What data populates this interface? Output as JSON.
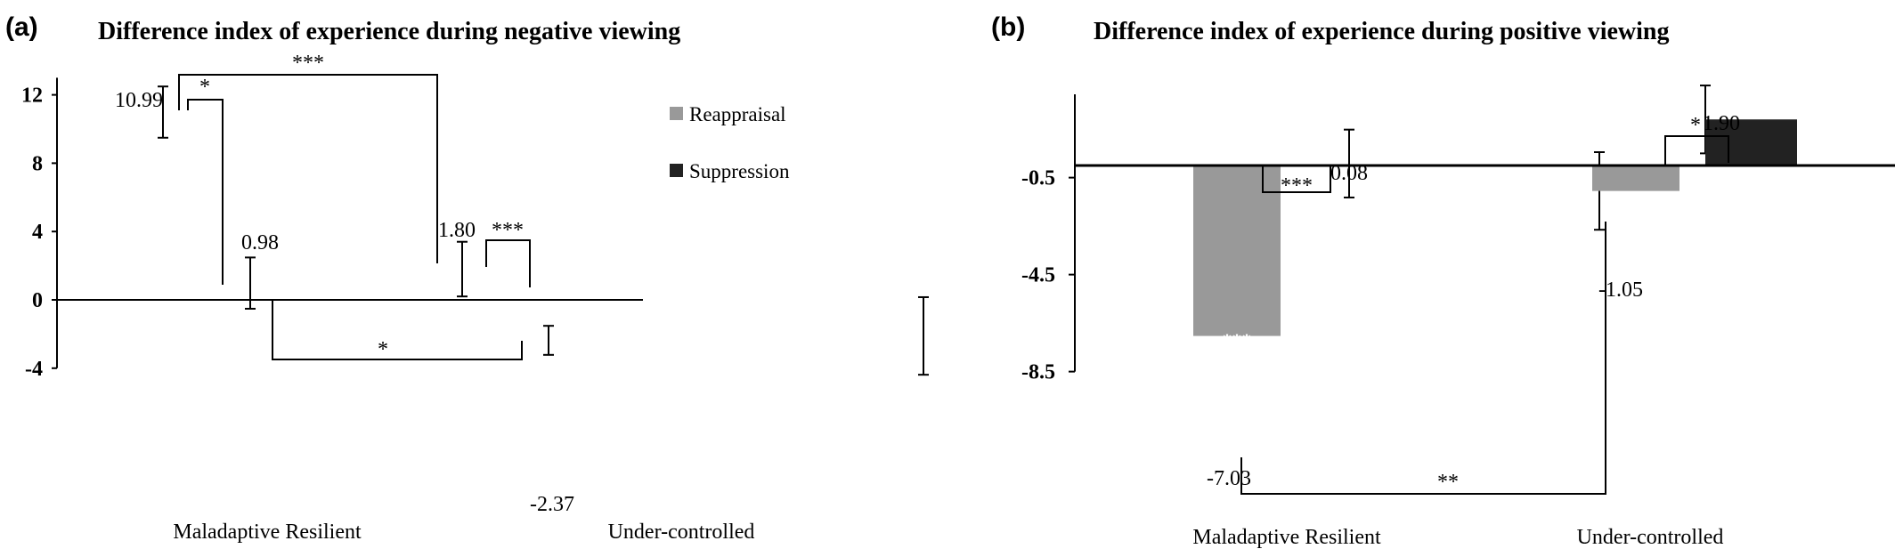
{
  "chart_data": [
    {
      "type": "bar",
      "panel_label": "(a)",
      "title": "Difference index of experience during negative viewing",
      "categories": [
        "Maladaptive Resilient",
        "Under-controlled"
      ],
      "series": [
        {
          "name": "Reappraisal",
          "color": "#999999",
          "values": [
            10.99,
            1.8
          ],
          "error": [
            1.5,
            1.6
          ]
        },
        {
          "name": "Suppression",
          "color": "#222222",
          "values": [
            0.98,
            -2.37
          ],
          "error": [
            1.5,
            0.85
          ]
        }
      ],
      "value_labels": [
        [
          "10.99",
          "1.80"
        ],
        [
          "0.98",
          "-2.37"
        ]
      ],
      "bar_stars": [
        [
          "***",
          ""
        ],
        [
          "",
          "*"
        ]
      ],
      "ylim": [
        -4,
        13
      ],
      "yticks": [
        -4,
        0,
        4,
        8,
        12
      ],
      "ytick_labels": [
        "-4",
        "0",
        "4",
        "8",
        "12"
      ],
      "legend_position": "top-right",
      "annotations": {
        "within_group": [
          "*",
          "***"
        ],
        "between_reappraisal": "***",
        "between_suppression": "*"
      }
    },
    {
      "type": "bar",
      "panel_label": "(b)",
      "title": "Difference index of experience during positive viewing",
      "categories": [
        "Maladaptive Resilient",
        "Under-controlled"
      ],
      "series": [
        {
          "name": "Reappraisal",
          "color": "#999999",
          "values": [
            -7.03,
            -1.05
          ],
          "error": [
            1.6,
            1.6
          ]
        },
        {
          "name": "Suppression",
          "color": "#222222",
          "values": [
            0.08,
            1.9
          ],
          "error": [
            1.4,
            1.4
          ]
        }
      ],
      "value_labels": [
        [
          "-7.03",
          "-1.05"
        ],
        [
          "0.08",
          "1.90"
        ]
      ],
      "bar_stars": [
        [
          "***",
          ""
        ],
        [
          "",
          ""
        ]
      ],
      "ylim": [
        -8.5,
        3.0
      ],
      "yticks": [
        -8.5,
        -4.5,
        -0.5
      ],
      "ytick_labels": [
        "-8.5",
        "-4.5",
        "-0.5"
      ],
      "annotations": {
        "within_group": [
          "***",
          "*"
        ],
        "between_reappraisal": "**"
      }
    }
  ]
}
